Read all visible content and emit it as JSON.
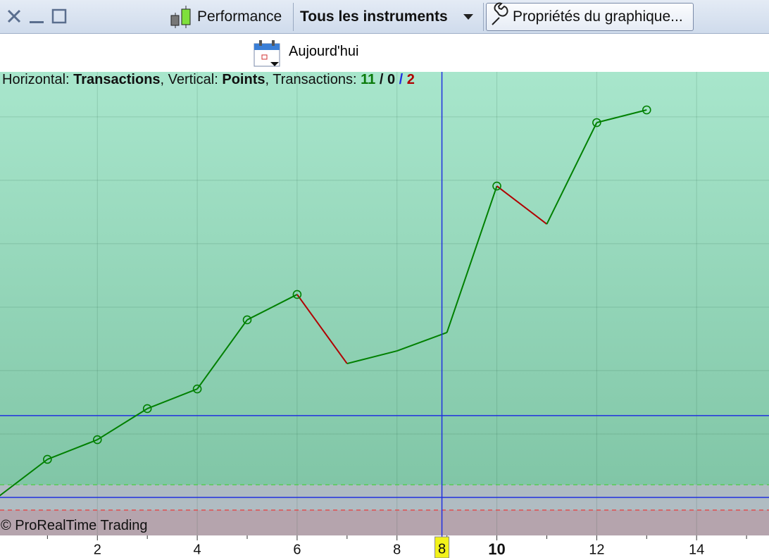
{
  "toolbar": {
    "performance": "Performance",
    "instruments": "Tous les instruments",
    "properties": "Propriétés du graphique..."
  },
  "date_button": "Aujourd'hui",
  "info_line": [
    {
      "text": "Horizontal: "
    },
    {
      "text": "Transactions",
      "bold": true
    },
    {
      "text": ", Vertical: "
    },
    {
      "text": "Points",
      "bold": true
    },
    {
      "text": ", Transactions: "
    },
    {
      "text": "11",
      "bold": true,
      "color": "#0a7a0a"
    },
    {
      "text": " / ",
      "bold": true
    },
    {
      "text": "0",
      "bold": true
    },
    {
      "text": " / ",
      "bold": true,
      "color": "#2030e0"
    },
    {
      "text": "2",
      "bold": true,
      "color": "#b00000"
    }
  ],
  "copyright": "© ProRealTime Trading",
  "cursor_label": "8",
  "chart_data": {
    "type": "line",
    "x": [
      0,
      1,
      2,
      3,
      4,
      5,
      6,
      7,
      8,
      9,
      10,
      11,
      12,
      13
    ],
    "series": [
      {
        "values": [
          0,
          0.6,
          0.91,
          1.4,
          1.71,
          2.8,
          3.2,
          2.11,
          2.31,
          2.6,
          4.91,
          4.31,
          5.91,
          6.11
        ],
        "color": "#008000",
        "down_color": "#b00000"
      }
    ],
    "marker_points": [
      1,
      2,
      3,
      4,
      5,
      6,
      10,
      12,
      13
    ],
    "xlim": [
      0.05,
      15.45
    ],
    "ylim": [
      -0.6,
      6.71
    ],
    "xticks": [
      2,
      4,
      6,
      8,
      10,
      12,
      14
    ],
    "xtick_bold": 10,
    "xminor": [
      1,
      3,
      5,
      7,
      9,
      11,
      13,
      15
    ],
    "yticks": [
      0,
      1,
      2,
      3,
      4,
      5,
      6
    ],
    "grid": true,
    "zones": [
      {
        "from": -0.2,
        "to": 0.2,
        "color": "#b0bcc2"
      },
      {
        "from": -0.6,
        "to": -0.2,
        "color": "#b5a4ad"
      }
    ],
    "hlines": [
      {
        "value": 1.29,
        "color": "#2030e0",
        "style": "solid"
      },
      {
        "value": 0,
        "color": "#2030e0",
        "style": "solid"
      },
      {
        "value": 0.2,
        "color": "#55cc55",
        "style": "dashed"
      },
      {
        "value": -0.2,
        "color": "#e05050",
        "style": "dashed"
      }
    ],
    "crosshair": {
      "x": 8.9,
      "color": "#2030e0"
    }
  }
}
